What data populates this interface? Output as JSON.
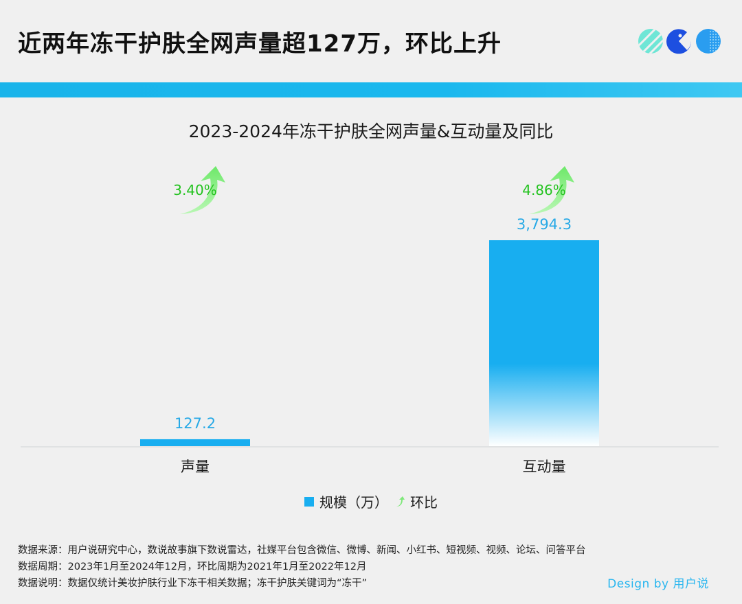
{
  "header": {
    "title": "近两年冻干护肤全网声量超127万，环比上升"
  },
  "chart_data": {
    "type": "bar",
    "title": "2023-2024年冻干护肤全网声量&互动量及同比",
    "categories": [
      "声量",
      "互动量"
    ],
    "series": [
      {
        "name": "规模（万）",
        "values": [
          127.2,
          3794.3
        ],
        "labels": [
          "127.2",
          "3,794.3"
        ]
      },
      {
        "name": "环比",
        "values": [
          3.4,
          4.86
        ],
        "labels": [
          "3.40%",
          "4.86%"
        ]
      }
    ],
    "ylim": [
      0,
      3794.3
    ],
    "grid": false,
    "legend": "bottom-center",
    "colors": {
      "bar": "#18aef0",
      "growth": "#22c21e",
      "arrow": "#8af08a"
    }
  },
  "legend": {
    "scale_label": "规模（万）",
    "growth_label": "环比"
  },
  "footer": {
    "source_label": "数据来源：",
    "source_value": "用户说研究中心，数说故事旗下数说雷达，社媒平台包含微信、微博、新闻、小红书、短视频、视频、论坛、问答平台",
    "period_label": "数据周期：",
    "period_value": "2023年1月至2024年12月，环比周期为2021年1月至2022年12月",
    "note_label": "数据说明：",
    "note_value": "数据仅统计美妆护肤行业下冻干相关数据；冻干护肤关键词为“冻干”"
  },
  "credit": "Design by 用户说"
}
